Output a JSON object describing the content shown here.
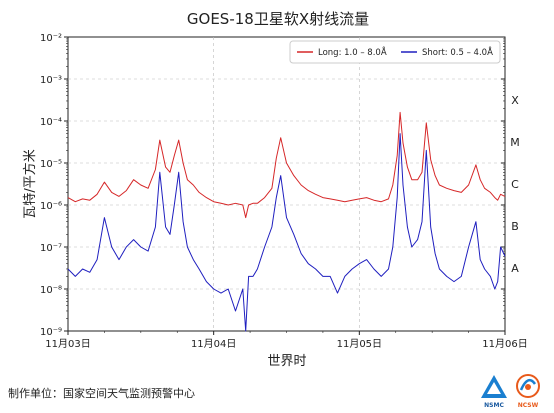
{
  "chart_data": {
    "type": "line",
    "title": "GOES-18卫星软X射线流量",
    "xlabel": "世界时",
    "ylabel": "瓦特/平方米",
    "yscale": "log",
    "ylim": [
      1e-09,
      0.01
    ],
    "ytick_labels": [
      "10⁻⁹",
      "10⁻⁸",
      "10⁻⁷",
      "10⁻⁶",
      "10⁻⁵",
      "10⁻⁴",
      "10⁻³",
      "10⁻²"
    ],
    "xlim": [
      "11月03日",
      "11月06日"
    ],
    "x_unit": "days since 11月03日 00:00 UT",
    "xtick_labels": [
      "11月03日",
      "11月04日",
      "11月05日",
      "11月06日"
    ],
    "flare_classes": [
      "A",
      "B",
      "C",
      "M",
      "X"
    ],
    "grid": true,
    "legend_position": "top-right",
    "series": [
      {
        "name": "Long: 1.0 – 8.0Å",
        "color": "#d62728",
        "points": [
          [
            0.0,
            1.5e-06
          ],
          [
            0.05,
            1.2e-06
          ],
          [
            0.1,
            1.4e-06
          ],
          [
            0.15,
            1.3e-06
          ],
          [
            0.2,
            1.8e-06
          ],
          [
            0.25,
            3.5e-06
          ],
          [
            0.3,
            2e-06
          ],
          [
            0.35,
            1.6e-06
          ],
          [
            0.4,
            2.2e-06
          ],
          [
            0.45,
            4e-06
          ],
          [
            0.5,
            3e-06
          ],
          [
            0.55,
            2.5e-06
          ],
          [
            0.6,
            7e-06
          ],
          [
            0.63,
            3.5e-05
          ],
          [
            0.67,
            8e-06
          ],
          [
            0.7,
            6e-06
          ],
          [
            0.73,
            1.5e-05
          ],
          [
            0.76,
            3.5e-05
          ],
          [
            0.79,
            1e-05
          ],
          [
            0.82,
            4e-06
          ],
          [
            0.86,
            3e-06
          ],
          [
            0.9,
            2e-06
          ],
          [
            0.95,
            1.5e-06
          ],
          [
            1.0,
            1.2e-06
          ],
          [
            1.05,
            1.1e-06
          ],
          [
            1.1,
            1e-06
          ],
          [
            1.15,
            1.1e-06
          ],
          [
            1.2,
            1e-06
          ],
          [
            1.22,
            5e-07
          ],
          [
            1.24,
            1e-06
          ],
          [
            1.27,
            1.1e-06
          ],
          [
            1.3,
            1.1e-06
          ],
          [
            1.35,
            1.5e-06
          ],
          [
            1.4,
            2.5e-06
          ],
          [
            1.43,
            1.3e-05
          ],
          [
            1.46,
            4e-05
          ],
          [
            1.5,
            1e-05
          ],
          [
            1.55,
            5e-06
          ],
          [
            1.6,
            3e-06
          ],
          [
            1.65,
            2.2e-06
          ],
          [
            1.7,
            1.8e-06
          ],
          [
            1.75,
            1.5e-06
          ],
          [
            1.8,
            1.4e-06
          ],
          [
            1.85,
            1.3e-06
          ],
          [
            1.9,
            1.2e-06
          ],
          [
            1.95,
            1.3e-06
          ],
          [
            2.0,
            1.4e-06
          ],
          [
            2.05,
            1.5e-06
          ],
          [
            2.1,
            1.3e-06
          ],
          [
            2.15,
            1.2e-06
          ],
          [
            2.2,
            1.4e-06
          ],
          [
            2.23,
            3e-06
          ],
          [
            2.26,
            1.5e-05
          ],
          [
            2.28,
            0.00016
          ],
          [
            2.3,
            3e-05
          ],
          [
            2.33,
            8e-06
          ],
          [
            2.36,
            4e-06
          ],
          [
            2.4,
            4e-06
          ],
          [
            2.43,
            6e-06
          ],
          [
            2.46,
            9e-05
          ],
          [
            2.49,
            1.2e-05
          ],
          [
            2.52,
            5e-06
          ],
          [
            2.55,
            3e-06
          ],
          [
            2.6,
            2.5e-06
          ],
          [
            2.65,
            2.2e-06
          ],
          [
            2.7,
            2e-06
          ],
          [
            2.75,
            3e-06
          ],
          [
            2.8,
            9e-06
          ],
          [
            2.83,
            4e-06
          ],
          [
            2.86,
            2.5e-06
          ],
          [
            2.9,
            2e-06
          ],
          [
            2.93,
            1.5e-06
          ],
          [
            2.95,
            1.3e-06
          ],
          [
            2.97,
            1.8e-06
          ],
          [
            3.0,
            1.6e-06
          ]
        ]
      },
      {
        "name": "Short: 0.5 – 4.0Å",
        "color": "#1f1fbf",
        "points": [
          [
            0.0,
            3e-08
          ],
          [
            0.05,
            2e-08
          ],
          [
            0.1,
            3e-08
          ],
          [
            0.15,
            2.5e-08
          ],
          [
            0.2,
            5e-08
          ],
          [
            0.25,
            5e-07
          ],
          [
            0.3,
            1e-07
          ],
          [
            0.35,
            5e-08
          ],
          [
            0.4,
            1e-07
          ],
          [
            0.45,
            1.5e-07
          ],
          [
            0.5,
            1e-07
          ],
          [
            0.55,
            8e-08
          ],
          [
            0.6,
            3e-07
          ],
          [
            0.63,
            6e-06
          ],
          [
            0.67,
            3e-07
          ],
          [
            0.7,
            2e-07
          ],
          [
            0.73,
            1e-06
          ],
          [
            0.76,
            6e-06
          ],
          [
            0.79,
            4e-07
          ],
          [
            0.82,
            1e-07
          ],
          [
            0.86,
            5e-08
          ],
          [
            0.9,
            3e-08
          ],
          [
            0.95,
            1.5e-08
          ],
          [
            1.0,
            1e-08
          ],
          [
            1.05,
            8e-09
          ],
          [
            1.1,
            1e-08
          ],
          [
            1.15,
            3e-09
          ],
          [
            1.2,
            1e-08
          ],
          [
            1.22,
            1e-09
          ],
          [
            1.24,
            2e-08
          ],
          [
            1.27,
            2e-08
          ],
          [
            1.3,
            3e-08
          ],
          [
            1.35,
            1e-07
          ],
          [
            1.4,
            3e-07
          ],
          [
            1.43,
            1.5e-06
          ],
          [
            1.46,
            5e-06
          ],
          [
            1.5,
            5e-07
          ],
          [
            1.55,
            2e-07
          ],
          [
            1.6,
            7e-08
          ],
          [
            1.65,
            4e-08
          ],
          [
            1.7,
            3e-08
          ],
          [
            1.75,
            2e-08
          ],
          [
            1.8,
            2e-08
          ],
          [
            1.85,
            8e-09
          ],
          [
            1.9,
            2e-08
          ],
          [
            1.95,
            3e-08
          ],
          [
            2.0,
            4e-08
          ],
          [
            2.05,
            5e-08
          ],
          [
            2.1,
            3e-08
          ],
          [
            2.15,
            2e-08
          ],
          [
            2.2,
            3e-08
          ],
          [
            2.23,
            1e-07
          ],
          [
            2.26,
            1.5e-06
          ],
          [
            2.28,
            5e-05
          ],
          [
            2.3,
            3e-06
          ],
          [
            2.33,
            3e-07
          ],
          [
            2.36,
            1e-07
          ],
          [
            2.4,
            1.5e-07
          ],
          [
            2.43,
            4e-07
          ],
          [
            2.46,
            2e-05
          ],
          [
            2.49,
            3e-07
          ],
          [
            2.52,
            7e-08
          ],
          [
            2.55,
            3e-08
          ],
          [
            2.6,
            2e-08
          ],
          [
            2.65,
            1.5e-08
          ],
          [
            2.7,
            2e-08
          ],
          [
            2.75,
            1e-07
          ],
          [
            2.8,
            4e-07
          ],
          [
            2.83,
            5e-08
          ],
          [
            2.86,
            3e-08
          ],
          [
            2.9,
            2e-08
          ],
          [
            2.93,
            1e-08
          ],
          [
            2.95,
            1.5e-08
          ],
          [
            2.97,
            1e-07
          ],
          [
            3.0,
            6e-08
          ]
        ]
      }
    ]
  },
  "footer": {
    "label": "制作单位：国家空间天气监测预警中心"
  },
  "logos": {
    "left": "NSMC",
    "right": "NCSW"
  }
}
